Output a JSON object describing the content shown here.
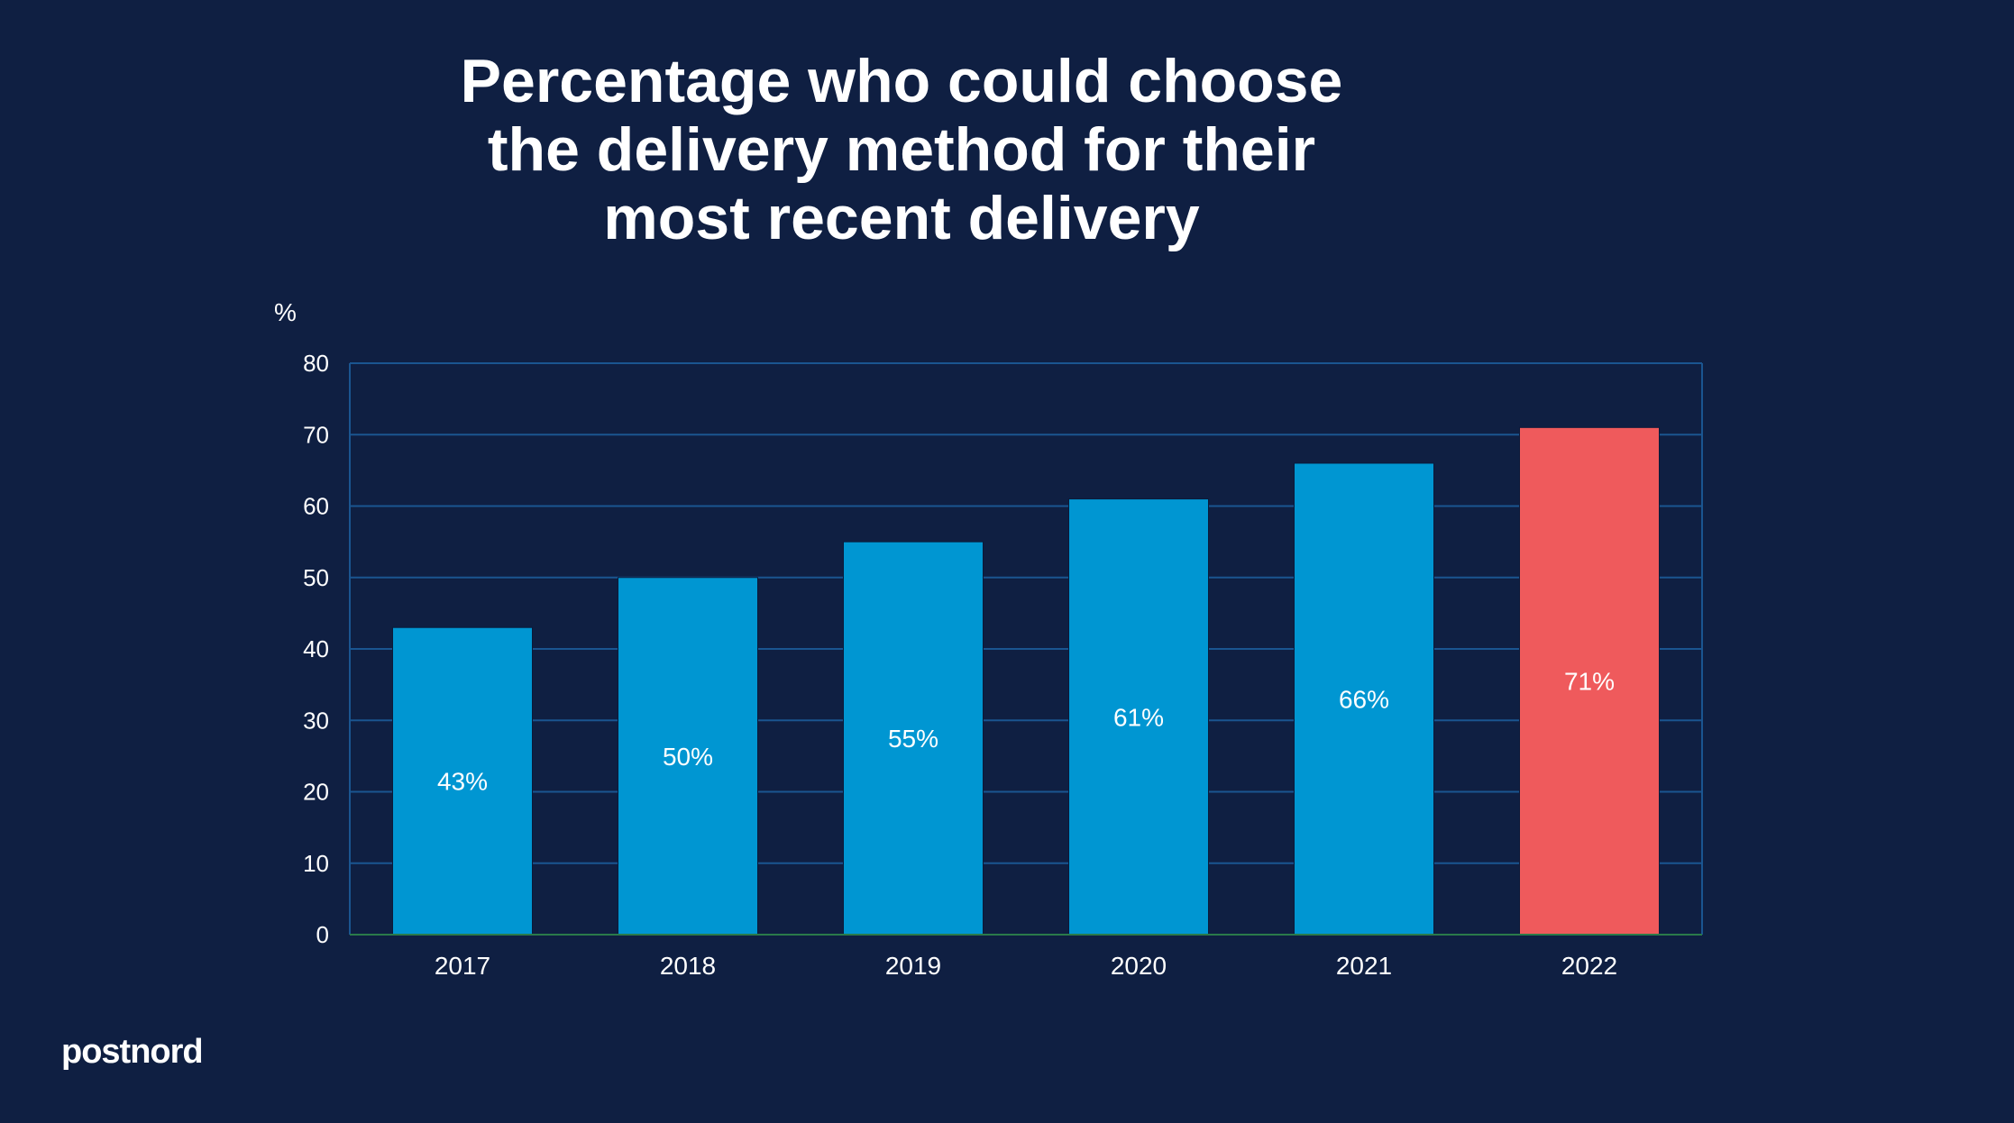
{
  "chart_data": {
    "type": "bar",
    "title_lines": [
      "Percentage who could choose",
      "the delivery method for their",
      "most recent delivery"
    ],
    "ylabel": "%",
    "xlabel": "",
    "categories": [
      "2017",
      "2018",
      "2019",
      "2020",
      "2021",
      "2022"
    ],
    "values": [
      43,
      50,
      55,
      61,
      66,
      71
    ],
    "data_labels": [
      "43%",
      "50%",
      "55%",
      "61%",
      "66%",
      "71%"
    ],
    "ylim": [
      0,
      80
    ],
    "yticks": [
      0,
      10,
      20,
      30,
      40,
      50,
      60,
      70,
      80
    ],
    "grid": true,
    "bar_colors": [
      "#0096d2",
      "#0096d2",
      "#0096d2",
      "#0096d2",
      "#0096d2",
      "#ef5a5c"
    ]
  },
  "colors": {
    "background": "#0f1f42",
    "grid": "#1a5590",
    "baseline": "#2a7a4a",
    "text": "#ffffff"
  },
  "brand": {
    "logo_text": "postnord"
  }
}
